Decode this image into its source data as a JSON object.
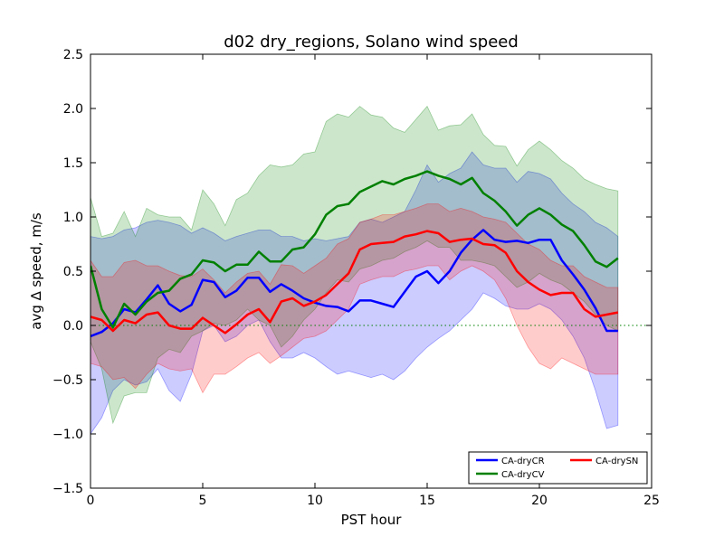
{
  "chart_data": {
    "type": "line",
    "title": "d02 dry_regions, Solano wind speed",
    "xlabel": "PST hour",
    "ylabel": "avg ∆ speed, m/s",
    "xlim": [
      0,
      25
    ],
    "ylim": [
      -1.5,
      2.5
    ],
    "xticks": [
      0,
      5,
      10,
      15,
      20,
      25
    ],
    "xtick_labels": [
      "0",
      "5",
      "10",
      "15",
      "20",
      "25"
    ],
    "yticks": [
      -1.5,
      -1.0,
      -0.5,
      0.0,
      0.5,
      1.0,
      1.5,
      2.0,
      2.5
    ],
    "ytick_labels": [
      "−1.5",
      "−1.0",
      "−0.5",
      "0.0",
      "0.5",
      "1.0",
      "1.5",
      "2.0",
      "2.5"
    ],
    "grid": false,
    "legend_position": "lower-right",
    "zero_line": {
      "y": 0,
      "color": "#008000",
      "style": "dotted"
    },
    "x": [
      0,
      0.5,
      1,
      1.5,
      2,
      2.5,
      3,
      3.5,
      4,
      4.5,
      5,
      5.5,
      6,
      6.5,
      7,
      7.5,
      8,
      8.5,
      9,
      9.5,
      10,
      10.5,
      11,
      11.5,
      12,
      12.5,
      13,
      13.5,
      14,
      14.5,
      15,
      15.5,
      16,
      16.5,
      17,
      17.5,
      18,
      18.5,
      19,
      19.5,
      20,
      20.5,
      21,
      21.5,
      22,
      22.5,
      23,
      23.5
    ],
    "series": [
      {
        "name": "CA-dryCR",
        "color": "#0000ff",
        "band_color": "#0000ff",
        "band_opacity": 0.2,
        "values": [
          -0.1,
          -0.06,
          0.02,
          0.15,
          0.12,
          0.24,
          0.37,
          0.2,
          0.13,
          0.19,
          0.42,
          0.4,
          0.26,
          0.32,
          0.44,
          0.44,
          0.31,
          0.38,
          0.32,
          0.25,
          0.21,
          0.18,
          0.17,
          0.13,
          0.23,
          0.23,
          0.2,
          0.17,
          0.31,
          0.45,
          0.5,
          0.39,
          0.5,
          0.67,
          0.79,
          0.88,
          0.79,
          0.77,
          0.78,
          0.76,
          0.79,
          0.79,
          0.6,
          0.47,
          0.33,
          0.16,
          -0.05,
          -0.05
        ],
        "upper": [
          0.82,
          0.8,
          0.82,
          0.88,
          0.9,
          0.95,
          0.97,
          0.95,
          0.92,
          0.85,
          0.9,
          0.85,
          0.78,
          0.82,
          0.85,
          0.88,
          0.88,
          0.82,
          0.82,
          0.78,
          0.8,
          0.78,
          0.8,
          0.82,
          0.95,
          0.98,
          0.95,
          1.0,
          1.05,
          1.25,
          1.48,
          1.32,
          1.4,
          1.45,
          1.6,
          1.48,
          1.45,
          1.45,
          1.32,
          1.42,
          1.4,
          1.35,
          1.22,
          1.12,
          1.05,
          0.95,
          0.9,
          0.82
        ],
        "lower": [
          -1.0,
          -0.85,
          -0.6,
          -0.5,
          -0.55,
          -0.52,
          -0.4,
          -0.6,
          -0.7,
          -0.45,
          -0.05,
          0.0,
          -0.15,
          -0.1,
          0.0,
          0.05,
          -0.15,
          -0.3,
          -0.3,
          -0.25,
          -0.3,
          -0.38,
          -0.45,
          -0.42,
          -0.45,
          -0.48,
          -0.45,
          -0.5,
          -0.42,
          -0.3,
          -0.2,
          -0.12,
          -0.05,
          0.05,
          0.15,
          0.3,
          0.25,
          0.18,
          0.15,
          0.15,
          0.2,
          0.15,
          0.05,
          -0.1,
          -0.3,
          -0.6,
          -0.95,
          -0.92
        ]
      },
      {
        "name": "CA-dryCV",
        "color": "#008000",
        "band_color": "#008000",
        "band_opacity": 0.2,
        "values": [
          0.55,
          0.15,
          -0.02,
          0.2,
          0.1,
          0.22,
          0.3,
          0.32,
          0.43,
          0.47,
          0.6,
          0.58,
          0.5,
          0.56,
          0.56,
          0.68,
          0.59,
          0.59,
          0.7,
          0.72,
          0.84,
          1.02,
          1.1,
          1.12,
          1.23,
          1.28,
          1.33,
          1.3,
          1.35,
          1.38,
          1.42,
          1.38,
          1.35,
          1.3,
          1.36,
          1.22,
          1.15,
          1.05,
          0.92,
          1.02,
          1.08,
          1.02,
          0.93,
          0.87,
          0.74,
          0.59,
          0.54,
          0.62
        ],
        "upper": [
          1.18,
          0.82,
          0.85,
          1.05,
          0.82,
          1.08,
          1.02,
          1.0,
          1.0,
          0.88,
          1.25,
          1.12,
          0.92,
          1.16,
          1.22,
          1.38,
          1.48,
          1.46,
          1.48,
          1.58,
          1.6,
          1.88,
          1.95,
          1.92,
          2.02,
          1.94,
          1.92,
          1.82,
          1.78,
          1.9,
          2.02,
          1.8,
          1.84,
          1.85,
          1.95,
          1.76,
          1.66,
          1.65,
          1.47,
          1.62,
          1.7,
          1.62,
          1.52,
          1.45,
          1.35,
          1.3,
          1.26,
          1.24
        ],
        "lower": [
          -0.15,
          -0.4,
          -0.9,
          -0.65,
          -0.62,
          -0.62,
          -0.3,
          -0.22,
          -0.25,
          -0.1,
          -0.05,
          0.02,
          0.0,
          0.05,
          0.15,
          0.05,
          0.0,
          -0.2,
          -0.1,
          0.05,
          0.15,
          0.3,
          0.42,
          0.4,
          0.52,
          0.55,
          0.6,
          0.62,
          0.68,
          0.72,
          0.78,
          0.72,
          0.72,
          0.6,
          0.6,
          0.58,
          0.55,
          0.45,
          0.35,
          0.4,
          0.48,
          0.42,
          0.38,
          0.3,
          0.22,
          0.1,
          0.0,
          -0.05
        ]
      },
      {
        "name": "CA-drySN",
        "color": "#ff0000",
        "band_color": "#ff0000",
        "band_opacity": 0.2,
        "values": [
          0.08,
          0.05,
          -0.05,
          0.05,
          0.02,
          0.1,
          0.12,
          0.0,
          -0.03,
          -0.03,
          0.07,
          0.0,
          -0.07,
          0.01,
          0.1,
          0.15,
          0.03,
          0.22,
          0.25,
          0.18,
          0.22,
          0.28,
          0.38,
          0.48,
          0.7,
          0.75,
          0.76,
          0.77,
          0.82,
          0.84,
          0.87,
          0.85,
          0.77,
          0.79,
          0.8,
          0.75,
          0.74,
          0.67,
          0.5,
          0.4,
          0.33,
          0.28,
          0.3,
          0.3,
          0.15,
          0.08,
          0.1,
          0.12
        ],
        "upper": [
          0.6,
          0.45,
          0.45,
          0.58,
          0.6,
          0.55,
          0.55,
          0.5,
          0.46,
          0.45,
          0.52,
          0.42,
          0.3,
          0.4,
          0.48,
          0.5,
          0.38,
          0.56,
          0.55,
          0.48,
          0.55,
          0.62,
          0.75,
          0.8,
          0.95,
          0.98,
          1.02,
          1.02,
          1.05,
          1.08,
          1.12,
          1.12,
          1.05,
          1.08,
          1.05,
          1.0,
          0.98,
          0.95,
          0.85,
          0.75,
          0.7,
          0.6,
          0.55,
          0.55,
          0.45,
          0.4,
          0.35,
          0.35
        ],
        "lower": [
          -0.35,
          -0.38,
          -0.5,
          -0.48,
          -0.58,
          -0.45,
          -0.35,
          -0.4,
          -0.42,
          -0.4,
          -0.62,
          -0.45,
          -0.45,
          -0.38,
          -0.3,
          -0.25,
          -0.35,
          -0.28,
          -0.2,
          -0.12,
          -0.1,
          -0.05,
          0.05,
          0.15,
          0.38,
          0.42,
          0.45,
          0.45,
          0.5,
          0.52,
          0.55,
          0.55,
          0.42,
          0.5,
          0.55,
          0.5,
          0.42,
          0.25,
          0.0,
          -0.2,
          -0.35,
          -0.4,
          -0.3,
          -0.35,
          -0.4,
          -0.45,
          -0.45,
          -0.45
        ]
      }
    ]
  }
}
